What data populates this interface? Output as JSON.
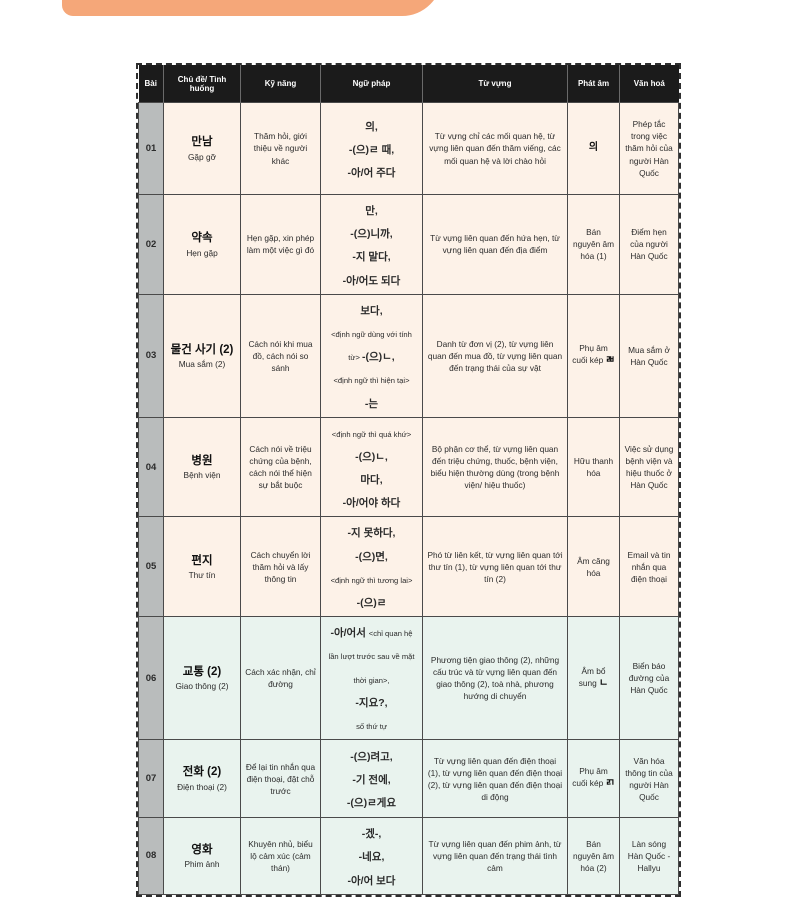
{
  "page": {
    "background_color": "#ffffff",
    "accent_color": "#f5a779"
  },
  "table": {
    "style": {
      "header_bg": "#1b1b1b",
      "header_text_color": "#ffffff",
      "lesson_col_bg": "#b9bcbc",
      "row_bg_peach": "#fdf2e8",
      "row_bg_mint": "#e9f3ee"
    },
    "header": {
      "columns": [
        "Bài",
        "Chủ đề/ Tình huống",
        "Kỹ năng",
        "Ngữ pháp",
        "Từ vựng",
        "Phát âm",
        "Văn hoá"
      ]
    },
    "rows": [
      {
        "bai": "01",
        "topic_ko": "만남",
        "topic_vi": "Gặp gỡ",
        "skill": "Thăm hỏi, giới thiệu về người khác",
        "grammar": [
          [
            [
              "ko",
              "의,"
            ]
          ],
          [
            [
              "ko",
              "-(으)ㄹ 때,"
            ]
          ],
          [
            [
              "ko",
              "-아/어 주다"
            ]
          ]
        ],
        "vocab": "Từ vựng chỉ các mối quan hệ, từ vựng liên quan đến thăm viếng, các mối quan hệ và lời chào hỏi",
        "pronunciation": [
          [
            "ko",
            "의"
          ]
        ],
        "culture": "Phép tắc trong việc thăm hỏi của người Hàn Quốc",
        "theme": "peach"
      },
      {
        "bai": "02",
        "topic_ko": "약속",
        "topic_vi": "Hẹn gặp",
        "skill": "Hẹn gặp, xin phép làm một việc gì đó",
        "grammar": [
          [
            [
              "ko",
              "만,"
            ]
          ],
          [
            [
              "ko",
              "-(으)니까,"
            ]
          ],
          [
            [
              "ko",
              "-지 말다,"
            ]
          ],
          [
            [
              "ko",
              "-아/어도 되다"
            ]
          ]
        ],
        "vocab": "Từ vựng liên quan đến hứa hẹn, từ vựng liên quan đến địa điểm",
        "pronunciation": [
          [
            "vi",
            "Bán nguyên âm hóa (1)"
          ]
        ],
        "culture": "Điểm hẹn của người Hàn Quốc",
        "theme": "peach"
      },
      {
        "bai": "03",
        "topic_ko": "물건 사기 (2)",
        "topic_vi": "Mua sắm (2)",
        "skill": "Cách nói khi mua đồ, cách nói so sánh",
        "grammar": [
          [
            [
              "ko",
              "보다,"
            ]
          ],
          [
            [
              "vi",
              "<định ngữ dùng với tính từ> "
            ],
            [
              "ko",
              "-(으)ㄴ,"
            ]
          ],
          [
            [
              "vi",
              "<định ngữ thì hiện tại>"
            ]
          ],
          [
            [
              "ko",
              "-는"
            ]
          ]
        ],
        "vocab": "Danh từ đơn vị (2), từ vựng liên quan đến mua đồ, từ vựng liên quan đến trạng thái của sự vật",
        "pronunciation": [
          [
            "vi",
            "Phụ âm cuối kép "
          ],
          [
            "ko",
            "ㄼ"
          ]
        ],
        "culture": "Mua sắm ở Hàn Quốc",
        "theme": "peach"
      },
      {
        "bai": "04",
        "topic_ko": "병원",
        "topic_vi": "Bệnh viện",
        "skill": "Cách nói về triệu chứng của bệnh, cách nói thể hiện sự bắt buộc",
        "grammar": [
          [
            [
              "vi",
              "<định ngữ thì quá khứ>"
            ]
          ],
          [
            [
              "ko",
              "-(으)ㄴ,"
            ]
          ],
          [
            [
              "ko",
              "마다,"
            ]
          ],
          [
            [
              "ko",
              "-아/어야 하다"
            ]
          ]
        ],
        "vocab": "Bộ phận cơ thể, từ vựng liên quan đến triệu chứng, thuốc, bệnh viện, biểu hiện thường dùng (trong bệnh viện/ hiệu thuốc)",
        "pronunciation": [
          [
            "vi",
            "Hữu thanh hóa"
          ]
        ],
        "culture": "Việc sử dụng bệnh viện và hiệu thuốc ở Hàn Quốc",
        "theme": "peach"
      },
      {
        "bai": "05",
        "topic_ko": "편지",
        "topic_vi": "Thư tín",
        "skill": "Cách chuyển lời thăm hỏi và lấy thông tin",
        "grammar": [
          [
            [
              "ko",
              "-지 못하다,"
            ]
          ],
          [
            [
              "ko",
              "-(으)면,"
            ]
          ],
          [
            [
              "vi",
              "<định ngữ thì tương lai>"
            ]
          ],
          [
            [
              "ko",
              "-(으)ㄹ"
            ]
          ]
        ],
        "vocab": "Phó từ liên kết, từ vựng liên quan tới thư tín (1), từ vựng liên quan tới thư tín (2)",
        "pronunciation": [
          [
            "vi",
            "Âm căng hóa"
          ]
        ],
        "culture": "Email và tin nhắn qua điện thoại",
        "theme": "peach"
      },
      {
        "bai": "06",
        "topic_ko": "교통 (2)",
        "topic_vi": "Giao thông (2)",
        "skill": "Cách xác nhận, chỉ đường",
        "grammar": [
          [
            [
              "ko",
              "-아/어서 "
            ],
            [
              "vi",
              "<chỉ quan hệ lần lượt trước sau về mặt thời gian>,"
            ]
          ],
          [
            [
              "ko",
              "-지요?,"
            ]
          ],
          [
            [
              "vi",
              "số thứ tự"
            ]
          ]
        ],
        "vocab": "Phương tiện giao thông (2), những cấu trúc và từ vựng liên quan đến giao thông (2), toà nhà, phương hướng di chuyển",
        "pronunciation": [
          [
            "vi",
            "Âm bổ sung "
          ],
          [
            "ko",
            "ㄴ"
          ]
        ],
        "culture": "Biển báo đường của Hàn Quốc",
        "theme": "mint"
      },
      {
        "bai": "07",
        "topic_ko": "전화 (2)",
        "topic_vi": "Điện thoại (2)",
        "skill": "Để lại tin nhắn qua điện thoại, đặt chỗ trước",
        "grammar": [
          [
            [
              "ko",
              "-(으)려고,"
            ]
          ],
          [
            [
              "ko",
              "-기 전에,"
            ]
          ],
          [
            [
              "ko",
              "-(으)ㄹ게요"
            ]
          ]
        ],
        "vocab": "Từ vựng liên quan đến điện thoại (1), từ vựng liên quan đến điện thoại (2), từ vựng liên quan đến điện thoại di động",
        "pronunciation": [
          [
            "vi",
            "Phụ âm cuối kép "
          ],
          [
            "ko",
            "ㄺ"
          ]
        ],
        "culture": "Văn hóa thông tin của người Hàn Quốc",
        "theme": "mint"
      },
      {
        "bai": "08",
        "topic_ko": "영화",
        "topic_vi": "Phim ảnh",
        "skill": "Khuyên nhủ, biểu lộ cảm xúc (cảm thán)",
        "grammar": [
          [
            [
              "ko",
              "-겠-,"
            ]
          ],
          [
            [
              "ko",
              "-네요,"
            ]
          ],
          [
            [
              "ko",
              "-아/어 보다"
            ]
          ]
        ],
        "vocab": "Từ vựng liên quan đến phim ảnh, từ vựng liên quan đến trạng thái tình cảm",
        "pronunciation": [
          [
            "vi",
            "Bán nguyên âm hóa (2)"
          ]
        ],
        "culture": "Làn sóng Hàn Quốc - Hallyu",
        "theme": "mint"
      }
    ]
  }
}
